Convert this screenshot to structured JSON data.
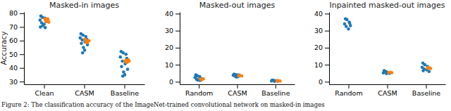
{
  "chart_data": [
    {
      "type": "scatter",
      "title": "Masked-in images",
      "y_label": "Accuracy",
      "xlim": [
        -0.5,
        2.5
      ],
      "xticks": [
        {
          "value": 0,
          "label": "Clean"
        },
        {
          "value": 1,
          "label": "CASM"
        },
        {
          "value": 2,
          "label": "Baseline"
        }
      ],
      "ylim": [
        28,
        81
      ],
      "yticks": [
        30,
        40,
        50,
        60,
        70,
        80
      ],
      "series": [
        {
          "color": "#1f77b4",
          "x": [
            -0.08,
            -0.04,
            0.02,
            -0.1,
            0.05,
            -0.06,
            0.0,
            -0.03,
            -0.09,
            0.03,
            0.92,
            0.97,
            1.04,
            0.9,
            1.06,
            0.95,
            1.02,
            0.93,
            1.08,
            0.98,
            1.01,
            0.96,
            1.92,
            1.97,
            2.04,
            1.9,
            2.06,
            1.95,
            2.02,
            1.93,
            2.08,
            1.98,
            2.01,
            1.96
          ],
          "values": [
            78,
            77,
            76.5,
            75,
            74,
            73,
            72,
            71,
            70,
            69.5,
            65,
            64,
            63,
            62,
            61,
            60.5,
            59,
            58,
            57,
            55,
            53,
            51,
            52,
            51,
            50,
            48,
            47,
            45,
            43,
            41,
            39,
            37,
            35,
            34
          ]
        },
        {
          "color": "#ff7f0e",
          "x": [
            0.02,
            0.06,
            0.1,
            0.04,
            0.08,
            0.12,
            0.05,
            0.09,
            0.07,
            1.02,
            1.06,
            1.1,
            1.04,
            1.08,
            1.12,
            1.05,
            2.02,
            2.06,
            2.1,
            2.04,
            2.08,
            2.12
          ],
          "values": [
            76,
            75.5,
            75,
            74.5,
            74,
            73.5,
            75,
            76,
            74.8,
            61,
            60,
            59.5,
            59,
            58.5,
            60,
            59.8,
            45,
            44,
            46,
            45.5,
            44.5,
            45
          ]
        }
      ]
    },
    {
      "type": "scatter",
      "title": "Masked-out images",
      "xlim": [
        -0.5,
        2.5
      ],
      "xticks": [
        {
          "value": 0,
          "label": "Random"
        },
        {
          "value": 1,
          "label": "CASM"
        },
        {
          "value": 2,
          "label": "Baseline"
        }
      ],
      "ylim": [
        -1.5,
        41
      ],
      "yticks": [
        0,
        10,
        20,
        30,
        40
      ],
      "series": [
        {
          "color": "#1f77b4",
          "x": [
            -0.08,
            -0.04,
            0.02,
            -0.1,
            0.05,
            -0.06,
            0.0,
            -0.03,
            0.03,
            0.92,
            0.97,
            1.04,
            0.9,
            1.06,
            0.95,
            1.02,
            0.98,
            1.92,
            1.97,
            2.04,
            1.9,
            2.06,
            1.98
          ],
          "values": [
            4,
            3.5,
            3,
            2.5,
            2,
            1.5,
            1.2,
            1,
            0.8,
            4.5,
            4.2,
            4,
            3.8,
            3.5,
            3.2,
            3,
            2.8,
            1,
            0.8,
            0.6,
            0.5,
            0.4,
            0.3
          ]
        },
        {
          "color": "#ff7f0e",
          "x": [
            0.04,
            0.08,
            0.12,
            0.06,
            1.04,
            1.08,
            1.12,
            1.06,
            2.04,
            2.08,
            2.12
          ],
          "values": [
            1.5,
            1.2,
            1.8,
            1.4,
            3.5,
            3.6,
            3.4,
            3.7,
            0.5,
            0.6,
            0.4
          ]
        }
      ]
    },
    {
      "type": "scatter",
      "title": "Inpainted masked-out images",
      "xlim": [
        -0.5,
        2.5
      ],
      "xticks": [
        {
          "value": 0,
          "label": "Random"
        },
        {
          "value": 1,
          "label": "CASM"
        },
        {
          "value": 2,
          "label": "Baseline"
        }
      ],
      "ylim": [
        -1.5,
        41
      ],
      "yticks": [
        0,
        10,
        20,
        30,
        40
      ],
      "series": [
        {
          "color": "#1f77b4",
          "x": [
            -0.08,
            -0.04,
            0.02,
            -0.1,
            0.05,
            -0.06,
            0.0,
            0.03,
            0.92,
            0.97,
            1.04,
            0.9,
            1.06,
            0.98,
            1.92,
            1.97,
            2.04,
            1.9,
            2.06,
            1.95,
            2.02,
            1.93,
            2.08
          ],
          "values": [
            37,
            36.5,
            35,
            34,
            33,
            32.5,
            31,
            34.5,
            6.5,
            6,
            5.5,
            5.2,
            5,
            4.8,
            11,
            10,
            9,
            8.5,
            8,
            7.5,
            7,
            6.5,
            6
          ]
        },
        {
          "color": "#ff7f0e",
          "x": [
            1.04,
            1.08,
            1.12,
            2.04,
            2.08,
            2.12,
            2.06
          ],
          "values": [
            5.5,
            5.6,
            5.3,
            8,
            8.2,
            7.8,
            8.5
          ]
        }
      ]
    }
  ],
  "caption": "Figure 2: The classification accuracy of the ImageNet-trained convolutional network on masked-in images"
}
